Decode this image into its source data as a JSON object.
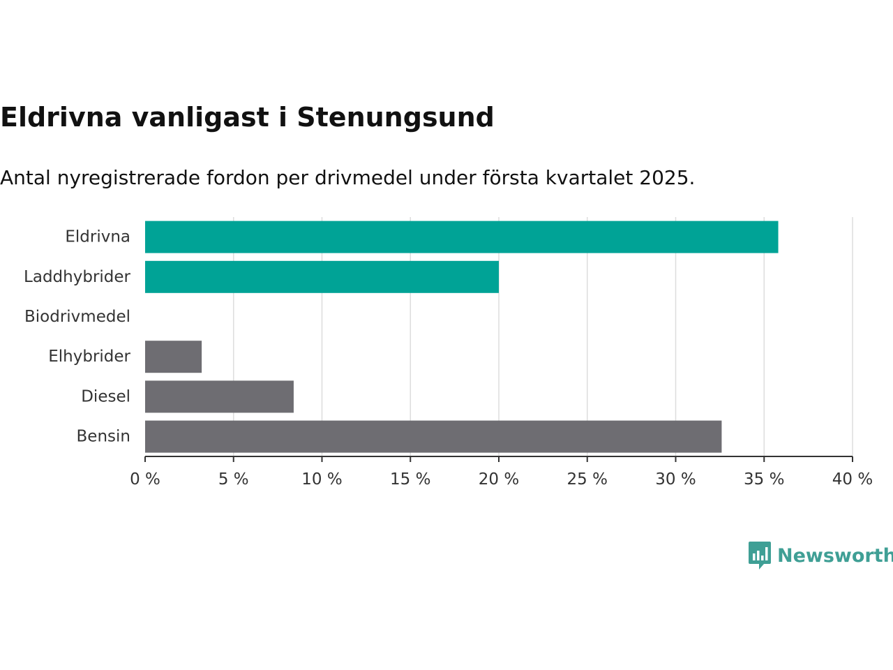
{
  "title": "Eldrivna vanligast i Stenungsund",
  "subtitle": "Antal nyregistrerade fordon per drivmedel under första kvartalet 2025.",
  "brand": {
    "name": "Newsworthy",
    "icon": "newsworthy-logo-icon",
    "color": "#3f9f95"
  },
  "chart_data": {
    "type": "bar",
    "orientation": "horizontal",
    "categories": [
      "Eldrivna",
      "Laddhybrider",
      "Biodrivmedel",
      "Elhybrider",
      "Diesel",
      "Bensin"
    ],
    "values": [
      35.8,
      20.0,
      0,
      3.2,
      8.4,
      32.6
    ],
    "colors": [
      "#00a396",
      "#00a396",
      "#00a396",
      "#6e6d72",
      "#6e6d72",
      "#6e6d72"
    ],
    "xlim": [
      0,
      40
    ],
    "xticks": [
      0,
      5,
      10,
      15,
      20,
      25,
      30,
      35,
      40
    ],
    "xtick_labels": [
      "0 %",
      "5 %",
      "10 %",
      "15 %",
      "20 %",
      "25 %",
      "30 %",
      "35 %",
      "40 %"
    ],
    "grid": true,
    "gridline_color": "#dddddd",
    "axis_color": "#333333"
  }
}
